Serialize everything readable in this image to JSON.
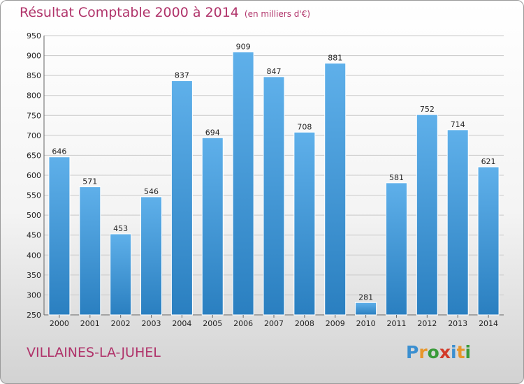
{
  "title": {
    "main": "Résultat Comptable 2000 à 2014",
    "unit": "(en milliers d'€)"
  },
  "location": "VILLAINES-LA-JUHEL",
  "logo": {
    "text": "Proxiti",
    "letters": [
      {
        "ch": "P",
        "color": "#3b8fd0"
      },
      {
        "ch": "r",
        "color": "#e8962a"
      },
      {
        "ch": "o",
        "color": "#3a9b3a"
      },
      {
        "ch": "x",
        "color": "#d23a2a"
      },
      {
        "ch": "i",
        "color": "#3b8fd0"
      },
      {
        "ch": "t",
        "color": "#e8962a"
      },
      {
        "ch": "i",
        "color": "#3a9b3a"
      }
    ]
  },
  "colors": {
    "title": "#b0336a",
    "bar_top": "#5fb0ea",
    "bar_bottom": "#2a7fc0",
    "grid": "#c9c9c9",
    "axis_text": "#222222"
  },
  "chart_data": {
    "type": "bar",
    "categories": [
      "2000",
      "2001",
      "2002",
      "2003",
      "2004",
      "2005",
      "2006",
      "2007",
      "2008",
      "2009",
      "2010",
      "2011",
      "2012",
      "2013",
      "2014"
    ],
    "values": [
      646,
      571,
      453,
      546,
      837,
      694,
      909,
      847,
      708,
      881,
      281,
      581,
      752,
      714,
      621
    ],
    "ylim": [
      250,
      950
    ],
    "yticks": [
      250,
      300,
      350,
      400,
      450,
      500,
      550,
      600,
      650,
      700,
      750,
      800,
      850,
      900,
      950
    ],
    "grid": true,
    "data_labels": true
  }
}
